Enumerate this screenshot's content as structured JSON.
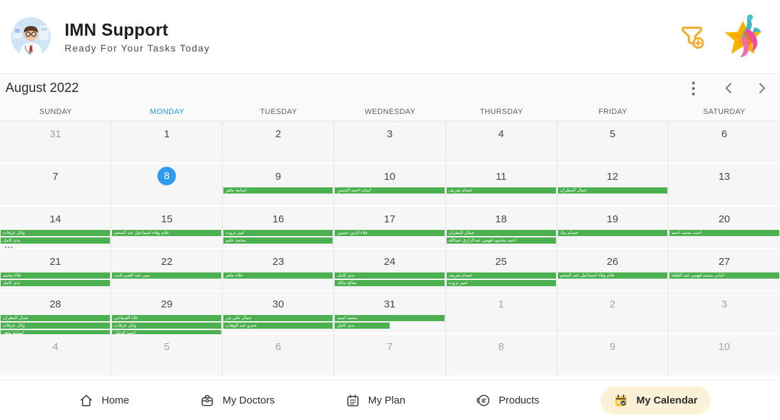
{
  "colors": {
    "accent_blue": "#2196F3",
    "event_green": "#4CAF50",
    "brand_yellow": "#F5B731",
    "nav_active_bg": "#FBF1D6"
  },
  "header": {
    "title": "IMN Support",
    "subtitle": "Ready For Your Tasks Today",
    "avatar_icon": "doctor-avatar",
    "filter_icon": "funnel-plus-icon",
    "logo_icon": "star-logo"
  },
  "calendar": {
    "month_title": "August 2022",
    "more_indicator": "•••",
    "weekdays": [
      {
        "label": "SUNDAY"
      },
      {
        "label": "MONDAY",
        "highlight": true
      },
      {
        "label": "TUESDAY"
      },
      {
        "label": "WEDNESDAY"
      },
      {
        "label": "THURSDAY"
      },
      {
        "label": "FRIDAY"
      },
      {
        "label": "SATURDAY"
      }
    ],
    "weeks": [
      [
        {
          "day": "31",
          "muted": true
        },
        {
          "day": "1"
        },
        {
          "day": "2"
        },
        {
          "day": "3"
        },
        {
          "day": "4"
        },
        {
          "day": "5"
        },
        {
          "day": "6"
        }
      ],
      [
        {
          "day": "7"
        },
        {
          "day": "8",
          "today": true
        },
        {
          "day": "9",
          "events": [
            {
              "label": "اسامة ماهر"
            }
          ]
        },
        {
          "day": "10",
          "events": [
            {
              "label": "ايمان احمد الحسن"
            }
          ]
        },
        {
          "day": "11",
          "events": [
            {
              "label": "حسام شريف"
            }
          ]
        },
        {
          "day": "12",
          "events": [
            {
              "label": "جمال المطران"
            }
          ]
        },
        {
          "day": "13"
        }
      ],
      [
        {
          "day": "14",
          "events": [
            {
              "label": "وائل عرفات"
            },
            {
              "label": "ندى كامل"
            }
          ],
          "more": true
        },
        {
          "day": "15",
          "events": [
            {
              "label": "علام وفاء اسماعيل عبد المنعم"
            }
          ]
        },
        {
          "day": "16",
          "events": [
            {
              "label": "امير ثروت"
            },
            {
              "label": "محمد حليم"
            }
          ]
        },
        {
          "day": "17",
          "events": [
            {
              "label": "علاء الدين حسين"
            }
          ]
        },
        {
          "day": "18",
          "events": [
            {
              "label": "جمال البطران"
            },
            {
              "label": "احمد محمود فهمي عبدالرازق عبدالله"
            }
          ]
        },
        {
          "day": "19",
          "events": [
            {
              "label": "حسام بيك"
            }
          ]
        },
        {
          "day": "20",
          "events": [
            {
              "label": "احمد محمد احمد"
            }
          ]
        }
      ],
      [
        {
          "day": "21",
          "events": [
            {
              "label": "علاء محمد"
            },
            {
              "label": "ندى كامل"
            }
          ]
        },
        {
          "day": "22",
          "events": [
            {
              "label": "منى عبد الغني ثابت"
            }
          ]
        },
        {
          "day": "23",
          "events": [
            {
              "label": "علاء ماهر"
            }
          ]
        },
        {
          "day": "24",
          "events": [
            {
              "label": "ندى كامل"
            },
            {
              "label": "صالح مالك"
            }
          ]
        },
        {
          "day": "25",
          "events": [
            {
              "label": "حسام شريف"
            },
            {
              "label": "امير ثروت"
            }
          ]
        },
        {
          "day": "26",
          "events": [
            {
              "label": "علام وفاء اسماعيل عبد المنعم"
            }
          ]
        },
        {
          "day": "27",
          "events": [
            {
              "label": "اماني محمد فهمي عبد القلعة"
            }
          ]
        }
      ],
      [
        {
          "day": "28",
          "events": [
            {
              "label": "جمال البطران"
            },
            {
              "label": "وائل عرفات"
            },
            {
              "label": "اسامة ماهر"
            }
          ]
        },
        {
          "day": "29",
          "events": [
            {
              "label": "علاء السباعي"
            },
            {
              "label": "وائل عرفات"
            },
            {
              "label": "احمد الدليل"
            }
          ]
        },
        {
          "day": "30",
          "events": [
            {
              "label": "جمال علي بدر"
            },
            {
              "label": "عمرو عبد الوهاب"
            }
          ]
        },
        {
          "day": "31",
          "events": [
            {
              "label": "محمد اسيد"
            },
            {
              "label": "ندى كامل",
              "width_pct": 50
            }
          ]
        },
        {
          "day": "1",
          "muted": true
        },
        {
          "day": "2",
          "muted": true
        },
        {
          "day": "3",
          "muted": true
        }
      ],
      [
        {
          "day": "4",
          "muted": true
        },
        {
          "day": "5",
          "muted": true
        },
        {
          "day": "6",
          "muted": true
        },
        {
          "day": "7",
          "muted": true
        },
        {
          "day": "8",
          "muted": true
        },
        {
          "day": "9",
          "muted": true
        },
        {
          "day": "10",
          "muted": true
        }
      ]
    ]
  },
  "nav": {
    "items": [
      {
        "label": "Home",
        "icon": "home-icon"
      },
      {
        "label": "My Doctors",
        "icon": "doctor-bag-icon"
      },
      {
        "label": "My Plan",
        "icon": "calendar-icon"
      },
      {
        "label": "Products",
        "icon": "products-icon"
      },
      {
        "label": "My Calendar",
        "icon": "calendar-check-icon",
        "active": true
      }
    ]
  }
}
